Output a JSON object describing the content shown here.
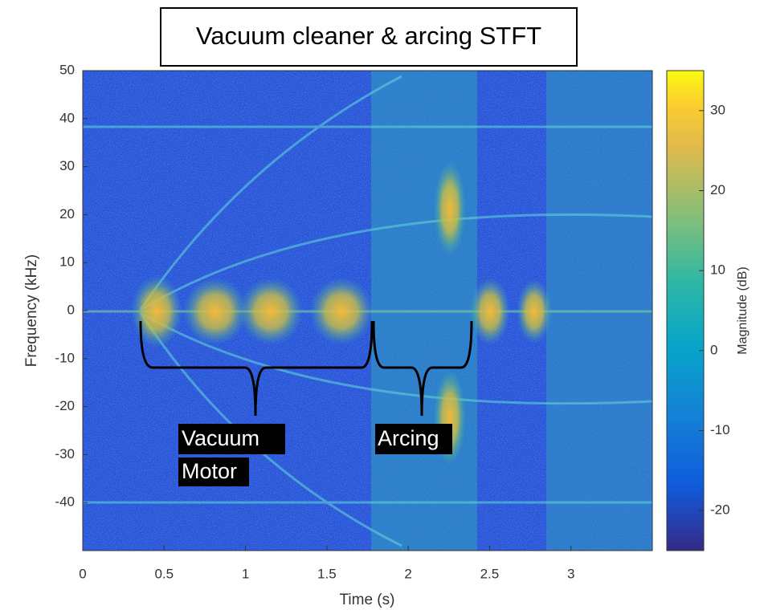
{
  "chart_data": {
    "type": "spectrogram",
    "title": "Vacuum cleaner & arcing STFT",
    "xlabel": "Time (s)",
    "ylabel": "Frequency (kHz)",
    "xlim": [
      0,
      3.5
    ],
    "xticks": [
      0,
      0.5,
      1,
      1.5,
      2,
      2.5,
      3
    ],
    "ylim": [
      -50,
      50
    ],
    "yticks": [
      -40,
      -30,
      -20,
      -10,
      0,
      10,
      20,
      30,
      40,
      50
    ],
    "grid": false,
    "colorbar": {
      "label": "Magnitude (dB)",
      "lim": [
        -25,
        35
      ],
      "ticks": [
        -20,
        -10,
        0,
        10,
        20,
        30
      ]
    },
    "annotations": [
      {
        "lines": [
          "Vacuum",
          "Motor"
        ]
      },
      {
        "lines": [
          "Arcing"
        ]
      }
    ]
  }
}
